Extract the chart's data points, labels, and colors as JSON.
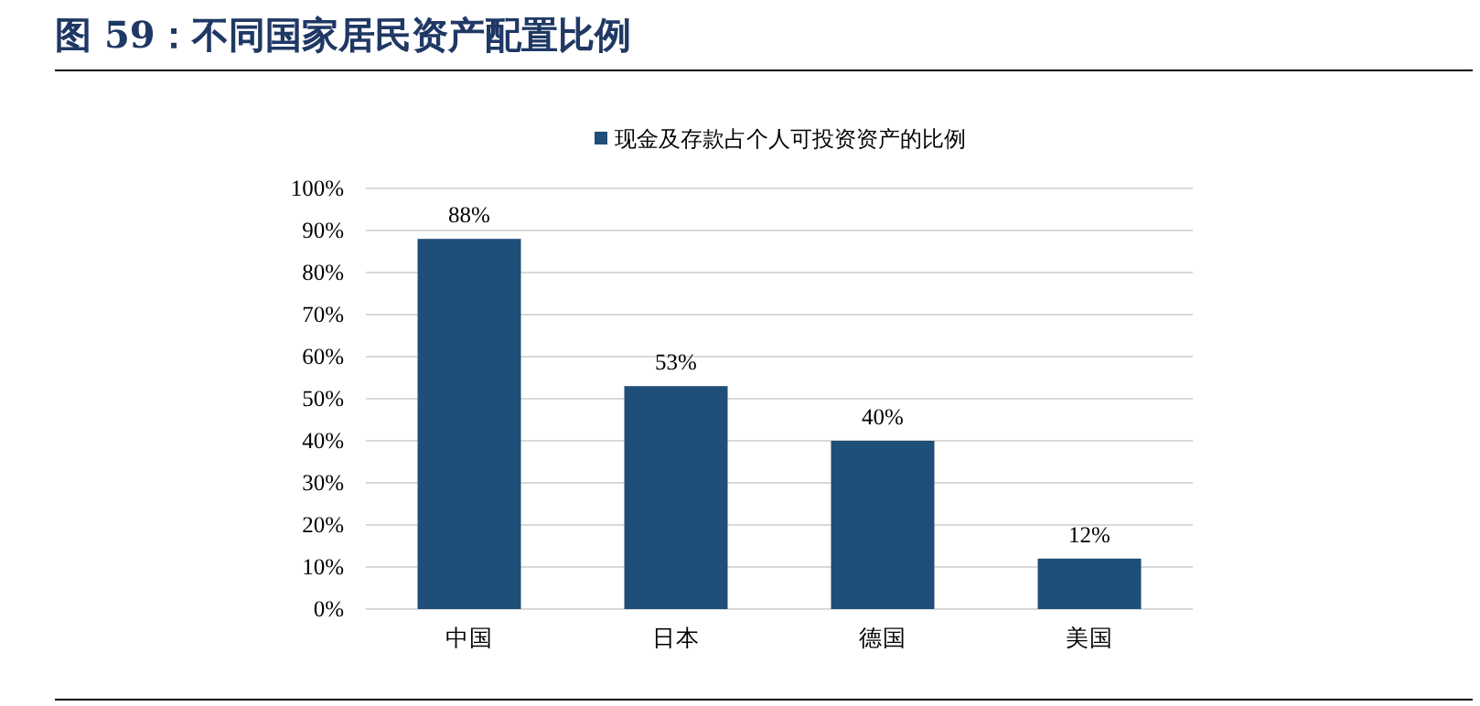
{
  "chart_data": {
    "type": "bar",
    "title": "图 59：不同国家居民资产配置比例",
    "categories": [
      "中国",
      "日本",
      "德国",
      "美国"
    ],
    "series": [
      {
        "name": "现金及存款占个人可投资资产的比例",
        "color": "#1f4e79",
        "values": [
          88,
          53,
          40,
          12
        ],
        "value_labels": [
          "88%",
          "53%",
          "40%",
          "12%"
        ]
      }
    ],
    "ylim": [
      0,
      100
    ],
    "yticks": [
      {
        "value": 0,
        "label": "0%"
      },
      {
        "value": 10,
        "label": "10%"
      },
      {
        "value": 20,
        "label": "20%"
      },
      {
        "value": 30,
        "label": "30%"
      },
      {
        "value": 40,
        "label": "40%"
      },
      {
        "value": 50,
        "label": "50%"
      },
      {
        "value": 60,
        "label": "60%"
      },
      {
        "value": 70,
        "label": "70%"
      },
      {
        "value": 80,
        "label": "80%"
      },
      {
        "value": 90,
        "label": "90%"
      },
      {
        "value": 100,
        "label": "100%"
      }
    ],
    "grid": "y",
    "legend": "top"
  }
}
